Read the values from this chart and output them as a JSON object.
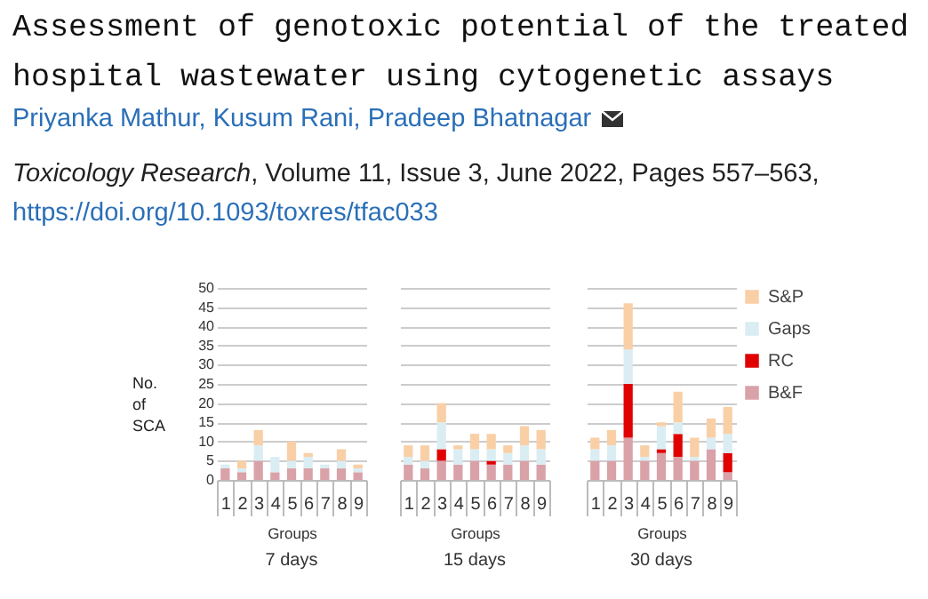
{
  "chart_data": [
    {
      "type": "other",
      "title": "Assessment of genotoxic potential of the treated hospital wastewater using cytogenetic assays",
      "subtitle": "Priyanka Mathur, Kusum Rani, Pradeep Bhatnagar",
      "annotations": [
        "Toxicology Research, Volume 11, Issue 3, June 2022, Pages 557–563,",
        "https://doi.org/10.1093/toxres/tfac033"
      ]
    },
    {
      "type": "bar",
      "stacked": true,
      "title": "7 days",
      "xlabel": "Groups",
      "ylabel": "No. of SCA",
      "categories": [
        "1",
        "2",
        "3",
        "4",
        "5",
        "6",
        "7",
        "8",
        "9"
      ],
      "ylim": [
        0,
        50
      ],
      "yticks": [
        0,
        5,
        10,
        15,
        20,
        25,
        30,
        35,
        40,
        45,
        50
      ],
      "grid": "y",
      "legend": false,
      "series": [
        {
          "color": "#d9a1a8",
          "values": [
            3,
            2,
            5,
            2,
            3,
            3,
            3,
            3,
            2
          ]
        },
        {
          "color": "#e00000",
          "values": [
            0,
            0,
            0,
            0,
            0,
            0,
            0,
            0,
            0
          ]
        },
        {
          "color": "#daedf3",
          "values": [
            1,
            1,
            4,
            4,
            2,
            3,
            1,
            2,
            1
          ]
        },
        {
          "color": "#f9cfa6",
          "values": [
            0,
            2,
            4,
            0,
            5,
            1,
            0,
            3,
            1
          ]
        }
      ]
    },
    {
      "type": "bar",
      "stacked": true,
      "title": "15 days",
      "xlabel": "Groups",
      "categories": [
        "1",
        "2",
        "3",
        "4",
        "5",
        "6",
        "7",
        "8",
        "9"
      ],
      "ylim": [
        0,
        50
      ],
      "yticks": [
        0,
        5,
        10,
        15,
        20,
        25,
        30,
        35,
        40,
        45,
        50
      ],
      "grid": "y",
      "legend": false,
      "tick_labels": "x",
      "series": [
        {
          "color": "#d9a1a8",
          "values": [
            4,
            3,
            5,
            4,
            5,
            4,
            4,
            5,
            4
          ]
        },
        {
          "color": "#e00000",
          "values": [
            0,
            0,
            3,
            0,
            0,
            1,
            0,
            0,
            0
          ]
        },
        {
          "color": "#daedf3",
          "values": [
            2,
            2,
            7,
            4,
            3,
            3,
            3,
            4,
            4
          ]
        },
        {
          "color": "#f9cfa6",
          "values": [
            3,
            4,
            5,
            1,
            4,
            4,
            2,
            5,
            5
          ]
        }
      ]
    },
    {
      "type": "bar",
      "stacked": true,
      "title": "30 days",
      "xlabel": "Groups",
      "categories": [
        "1",
        "2",
        "3",
        "4",
        "5",
        "6",
        "7",
        "8",
        "9"
      ],
      "ylim": [
        0,
        50
      ],
      "yticks": [
        0,
        5,
        10,
        15,
        20,
        25,
        30,
        35,
        40,
        45,
        50
      ],
      "grid": "y",
      "legend": "right",
      "tick_labels": "x",
      "series": [
        {
          "name": "B&F",
          "color": "#d9a1a8",
          "values": [
            5,
            5,
            11,
            5,
            7,
            6,
            5,
            8,
            2
          ]
        },
        {
          "name": "RC",
          "color": "#e00000",
          "values": [
            0,
            0,
            14,
            0,
            1,
            6,
            0,
            0,
            5
          ]
        },
        {
          "name": "Gaps",
          "color": "#daedf3",
          "values": [
            3,
            4,
            9,
            1,
            6,
            3,
            1,
            3,
            5
          ]
        },
        {
          "name": "S&P",
          "color": "#f9cfa6",
          "values": [
            3,
            4,
            12,
            3,
            1,
            8,
            5,
            5,
            7
          ]
        }
      ]
    }
  ]
}
